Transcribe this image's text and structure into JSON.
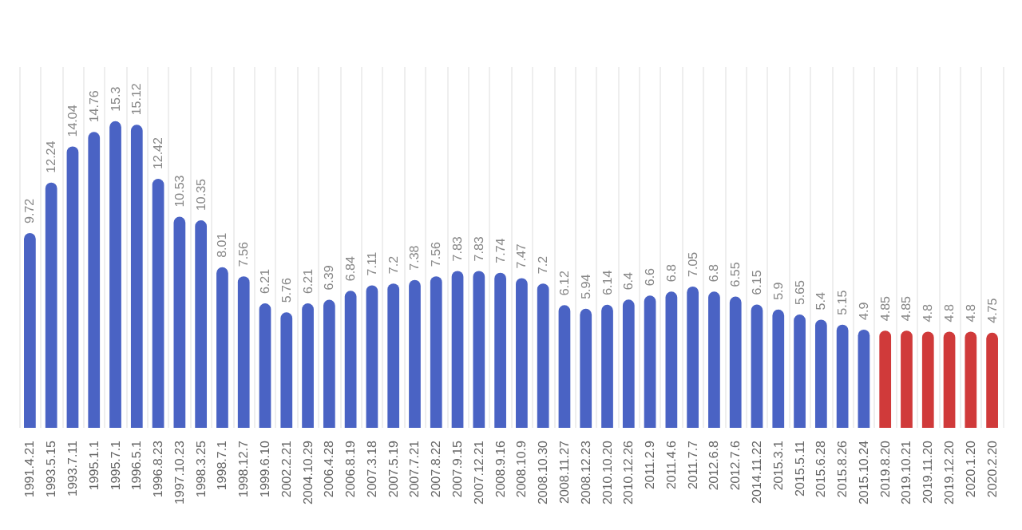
{
  "chart_data": {
    "type": "bar",
    "categories": [
      "1991.4.21",
      "1993.5.15",
      "1993.7.11",
      "1995.1.1",
      "1995.7.1",
      "1996.5.1",
      "1996.8.23",
      "1997.10.23",
      "1998.3.25",
      "1998.7.1",
      "1998.12.7",
      "1999.6.10",
      "2002.2.21",
      "2004.10.29",
      "2006.4.28",
      "2006.8.19",
      "2007.3.18",
      "2007.5.19",
      "2007.7.21",
      "2007.8.22",
      "2007.9.15",
      "2007.12.21",
      "2008.9.16",
      "2008.10.9",
      "2008.10.30",
      "2008.11.27",
      "2008.12.23",
      "2010.10.20",
      "2010.12.26",
      "2011.2.9",
      "2011.4.6",
      "2011.7.7",
      "2012.6.8",
      "2012.7.6",
      "2014.11.22",
      "2015.3.1",
      "2015.5.11",
      "2015.6.28",
      "2015.8.26",
      "2015.10.24",
      "2019.8.20",
      "2019.10.21",
      "2019.11.20",
      "2019.12.20",
      "2020.1.20",
      "2020.2.20"
    ],
    "values": [
      9.72,
      12.24,
      14.04,
      14.76,
      15.3,
      15.12,
      12.42,
      10.53,
      10.35,
      8.01,
      7.56,
      6.21,
      5.76,
      6.21,
      6.39,
      6.84,
      7.11,
      7.2,
      7.38,
      7.56,
      7.83,
      7.83,
      7.74,
      7.47,
      7.2,
      6.12,
      5.94,
      6.14,
      6.4,
      6.6,
      6.8,
      7.05,
      6.8,
      6.55,
      6.15,
      5.9,
      5.65,
      5.4,
      5.15,
      4.9,
      4.85,
      4.85,
      4.8,
      4.8,
      4.8,
      4.75
    ],
    "colors": [
      "#4a63c4",
      "#4a63c4",
      "#4a63c4",
      "#4a63c4",
      "#4a63c4",
      "#4a63c4",
      "#4a63c4",
      "#4a63c4",
      "#4a63c4",
      "#4a63c4",
      "#4a63c4",
      "#4a63c4",
      "#4a63c4",
      "#4a63c4",
      "#4a63c4",
      "#4a63c4",
      "#4a63c4",
      "#4a63c4",
      "#4a63c4",
      "#4a63c4",
      "#4a63c4",
      "#4a63c4",
      "#4a63c4",
      "#4a63c4",
      "#4a63c4",
      "#4a63c4",
      "#4a63c4",
      "#4a63c4",
      "#4a63c4",
      "#4a63c4",
      "#4a63c4",
      "#4a63c4",
      "#4a63c4",
      "#4a63c4",
      "#4a63c4",
      "#4a63c4",
      "#4a63c4",
      "#4a63c4",
      "#4a63c4",
      "#4a63c4",
      "#d03a3a",
      "#d03a3a",
      "#d03a3a",
      "#d03a3a",
      "#d03a3a",
      "#d03a3a"
    ],
    "data_labels": true,
    "grid": "x"
  }
}
